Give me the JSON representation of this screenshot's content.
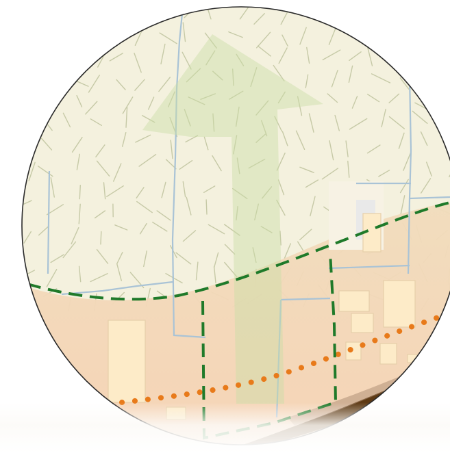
{
  "map": {
    "colors": {
      "background": "#ffffff",
      "lens_border": "#2a2a2a",
      "upland_fill": "#f4f1de",
      "hatch": "#b7bc94",
      "lowland_fill": "#f1dcbc",
      "building": "#fdebc8",
      "building_edge": "#e6cfa9",
      "parcel_line": "#a9c3d6",
      "pale_area": "#eeeeee",
      "boundary_green": "#1f7a2a",
      "dotted_orange": "#e87a1a",
      "road_brown": "#5e3a14",
      "arrow_green": "#d4e4b8"
    },
    "layers": [
      {
        "name": "upland-area",
        "symbol": "hatched-fill"
      },
      {
        "name": "lowland-area",
        "symbol": "solid-fill"
      },
      {
        "name": "parcel-boundaries",
        "symbol": "thin-blue-line"
      },
      {
        "name": "study-boundary",
        "symbol": "dashed-green-line"
      },
      {
        "name": "route-line",
        "symbol": "dotted-orange-line"
      },
      {
        "name": "road",
        "symbol": "brown-band"
      },
      {
        "name": "direction-arrow",
        "symbol": "translucent-green-arrow"
      },
      {
        "name": "buildings",
        "symbol": "cream-rectangles"
      }
    ]
  }
}
